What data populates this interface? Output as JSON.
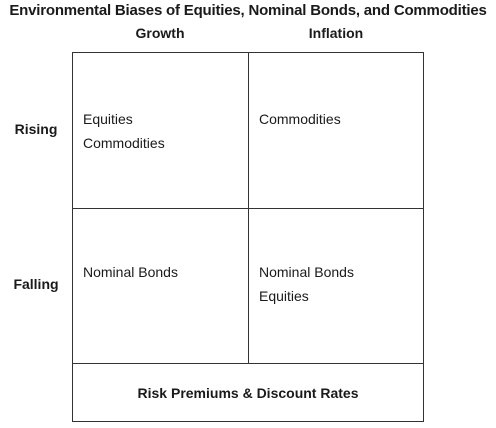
{
  "title": "Environmental Biases of Equities, Nominal Bonds, and Commodities",
  "columns": [
    "Growth",
    "Inflation"
  ],
  "rows": [
    "Rising",
    "Falling"
  ],
  "cells": {
    "rising_growth": [
      "Equities",
      "Commodities"
    ],
    "rising_inflation": [
      "Commodities"
    ],
    "falling_growth": [
      "Nominal Bonds"
    ],
    "falling_inflation": [
      "Nominal Bonds",
      "Equities"
    ]
  },
  "footer": "Risk Premiums & Discount Rates"
}
